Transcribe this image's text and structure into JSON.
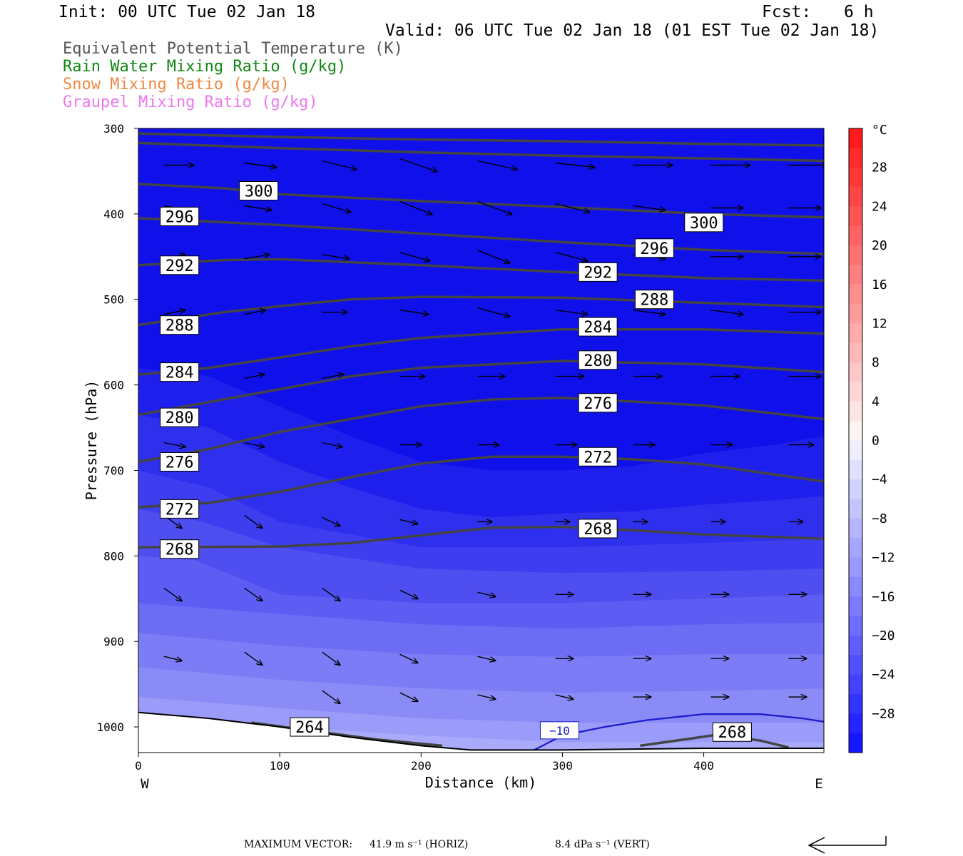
{
  "header": {
    "init": "Init: 00 UTC Tue 02 Jan 18",
    "fcst_label": "Fcst:",
    "fcst_value": "6 h",
    "valid": "Valid: 06 UTC Tue 02 Jan 18 (01 EST Tue 02 Jan 18)"
  },
  "legend": [
    {
      "text": "Equivalent Potential Temperature (K)",
      "color": "#555555"
    },
    {
      "text": "Rain Water Mixing Ratio (g/kg)",
      "color": "#118811"
    },
    {
      "text": "Snow Mixing Ratio (g/kg)",
      "color": "#ee8844"
    },
    {
      "text": "Graupel Mixing Ratio (g/kg)",
      "color": "#ee77ee"
    }
  ],
  "chart_data": {
    "type": "heatmap",
    "title": "",
    "xlabel": "Distance (km)",
    "ylabel": "Pressure (hPa)",
    "x_range": [
      0,
      485
    ],
    "y_range": [
      300,
      1030
    ],
    "x_ticks": [
      0,
      100,
      200,
      300,
      400
    ],
    "y_ticks": [
      300,
      400,
      500,
      600,
      700,
      800,
      900,
      1000
    ],
    "x_end_labels": {
      "left": "W",
      "right": "E"
    },
    "colorbar": {
      "unit": "°C",
      "range": [
        -32,
        32
      ],
      "labels": [
        "28",
        "24",
        "20",
        "16",
        "12",
        "8",
        "4",
        "0",
        "−4",
        "−8",
        "−12",
        "−16",
        "−20",
        "−24",
        "−28"
      ]
    },
    "temperature_bands": [
      {
        "value": -30,
        "top": [
          [
            0,
            300
          ],
          [
            485,
            300
          ]
        ]
      },
      {
        "value": -28,
        "top": [
          [
            0,
            580
          ],
          [
            50,
            590
          ],
          [
            100,
            625
          ],
          [
            150,
            660
          ],
          [
            200,
            690
          ],
          [
            250,
            700
          ],
          [
            300,
            700
          ],
          [
            350,
            695
          ],
          [
            400,
            680
          ],
          [
            450,
            670
          ],
          [
            485,
            660
          ]
        ]
      },
      {
        "value": -26,
        "top": [
          [
            0,
            635
          ],
          [
            50,
            650
          ],
          [
            100,
            690
          ],
          [
            150,
            720
          ],
          [
            200,
            745
          ],
          [
            250,
            755
          ],
          [
            300,
            750
          ],
          [
            350,
            748
          ],
          [
            400,
            740
          ],
          [
            450,
            735
          ],
          [
            485,
            730
          ]
        ]
      },
      {
        "value": -24,
        "top": [
          [
            0,
            700
          ],
          [
            50,
            720
          ],
          [
            100,
            760
          ],
          [
            150,
            775
          ],
          [
            200,
            790
          ],
          [
            300,
            790
          ],
          [
            400,
            785
          ],
          [
            485,
            780
          ]
        ]
      },
      {
        "value": -22,
        "top": [
          [
            0,
            745
          ],
          [
            45,
            760
          ],
          [
            100,
            790
          ],
          [
            200,
            815
          ],
          [
            300,
            820
          ],
          [
            400,
            818
          ],
          [
            485,
            815
          ]
        ]
      },
      {
        "value": -20,
        "top": [
          [
            0,
            800
          ],
          [
            40,
            805
          ],
          [
            100,
            845
          ],
          [
            200,
            855
          ],
          [
            300,
            855
          ],
          [
            400,
            850
          ],
          [
            485,
            845
          ]
        ]
      },
      {
        "value": -18,
        "top": [
          [
            0,
            855
          ],
          [
            100,
            868
          ],
          [
            200,
            880
          ],
          [
            300,
            885
          ],
          [
            400,
            880
          ],
          [
            485,
            878
          ]
        ]
      },
      {
        "value": -16,
        "top": [
          [
            0,
            890
          ],
          [
            100,
            905
          ],
          [
            200,
            915
          ],
          [
            300,
            918
          ],
          [
            400,
            915
          ],
          [
            485,
            915
          ]
        ]
      },
      {
        "value": -14,
        "top": [
          [
            0,
            930
          ],
          [
            100,
            945
          ],
          [
            200,
            955
          ],
          [
            300,
            960
          ],
          [
            400,
            958
          ],
          [
            485,
            955
          ]
        ]
      },
      {
        "value": -12,
        "top": [
          [
            0,
            965
          ],
          [
            100,
            978
          ],
          [
            200,
            990
          ],
          [
            300,
            995
          ],
          [
            400,
            995
          ],
          [
            485,
            995
          ]
        ]
      },
      {
        "value": -10,
        "top": [
          [
            0,
            985
          ],
          [
            100,
            1000
          ],
          [
            200,
            1010
          ],
          [
            300,
            1018
          ],
          [
            400,
            1018
          ],
          [
            485,
            1018
          ]
        ]
      }
    ],
    "theta_e_contours": [
      {
        "value": 304,
        "points": [
          [
            0,
            306
          ],
          [
            100,
            310
          ],
          [
            200,
            313
          ],
          [
            300,
            315
          ],
          [
            400,
            318
          ],
          [
            485,
            320
          ]
        ]
      },
      {
        "value": 300,
        "points": [
          [
            0,
            317
          ],
          [
            100,
            323
          ],
          [
            200,
            328
          ],
          [
            300,
            332
          ],
          [
            400,
            335
          ],
          [
            485,
            338
          ]
        ]
      },
      {
        "value": 300,
        "points": [
          [
            0,
            365
          ],
          [
            60,
            370
          ],
          [
            100,
            377
          ],
          [
            200,
            385
          ],
          [
            300,
            392
          ],
          [
            400,
            400
          ],
          [
            485,
            404
          ]
        ]
      },
      {
        "value": 296,
        "points": [
          [
            0,
            405
          ],
          [
            100,
            413
          ],
          [
            200,
            423
          ],
          [
            300,
            433
          ],
          [
            400,
            442
          ],
          [
            485,
            447
          ]
        ]
      },
      {
        "value": 292,
        "points": [
          [
            0,
            460
          ],
          [
            60,
            454
          ],
          [
            100,
            453
          ],
          [
            200,
            460
          ],
          [
            300,
            468
          ],
          [
            400,
            475
          ],
          [
            485,
            478
          ]
        ]
      },
      {
        "value": 288,
        "points": [
          [
            0,
            530
          ],
          [
            60,
            515
          ],
          [
            100,
            508
          ],
          [
            150,
            500
          ],
          [
            200,
            497
          ],
          [
            300,
            498
          ],
          [
            400,
            504
          ],
          [
            485,
            509
          ]
        ]
      },
      {
        "value": 284,
        "points": [
          [
            0,
            588
          ],
          [
            50,
            580
          ],
          [
            100,
            568
          ],
          [
            150,
            555
          ],
          [
            200,
            545
          ],
          [
            300,
            535
          ],
          [
            400,
            535
          ],
          [
            485,
            540
          ]
        ]
      },
      {
        "value": 280,
        "points": [
          [
            0,
            635
          ],
          [
            50,
            620
          ],
          [
            100,
            605
          ],
          [
            150,
            590
          ],
          [
            200,
            580
          ],
          [
            300,
            572
          ],
          [
            400,
            576
          ],
          [
            485,
            585
          ]
        ]
      },
      {
        "value": 276,
        "points": [
          [
            0,
            690
          ],
          [
            50,
            675
          ],
          [
            100,
            655
          ],
          [
            150,
            640
          ],
          [
            200,
            625
          ],
          [
            250,
            617
          ],
          [
            300,
            615
          ],
          [
            400,
            624
          ],
          [
            485,
            640
          ]
        ]
      },
      {
        "value": 272,
        "points": [
          [
            0,
            743
          ],
          [
            50,
            738
          ],
          [
            100,
            725
          ],
          [
            150,
            708
          ],
          [
            200,
            692
          ],
          [
            250,
            684
          ],
          [
            300,
            684
          ],
          [
            350,
            687
          ],
          [
            400,
            693
          ],
          [
            485,
            713
          ]
        ]
      },
      {
        "value": 268,
        "points": [
          [
            0,
            790
          ],
          [
            100,
            789
          ],
          [
            150,
            785
          ],
          [
            200,
            776
          ],
          [
            250,
            767
          ],
          [
            300,
            766
          ],
          [
            350,
            770
          ],
          [
            400,
            775
          ],
          [
            485,
            780
          ]
        ]
      },
      {
        "value": 264,
        "points": [
          [
            80,
            995
          ],
          [
            120,
            1004
          ],
          [
            170,
            1015
          ],
          [
            215,
            1022
          ]
        ]
      },
      {
        "value": 268,
        "points": [
          [
            355,
            1022
          ],
          [
            385,
            1015
          ],
          [
            410,
            1009
          ],
          [
            440,
            1016
          ],
          [
            460,
            1024
          ]
        ]
      }
    ],
    "theta_e_labels": [
      {
        "text": "300",
        "x": 75,
        "y": 373
      },
      {
        "text": "296",
        "x": 19,
        "y": 403
      },
      {
        "text": "292",
        "x": 19,
        "y": 460
      },
      {
        "text": "288",
        "x": 19,
        "y": 530
      },
      {
        "text": "284",
        "x": 19,
        "y": 585
      },
      {
        "text": "280",
        "x": 19,
        "y": 638
      },
      {
        "text": "276",
        "x": 19,
        "y": 690
      },
      {
        "text": "272",
        "x": 19,
        "y": 745
      },
      {
        "text": "268",
        "x": 19,
        "y": 792
      },
      {
        "text": "300",
        "x": 390,
        "y": 410
      },
      {
        "text": "296",
        "x": 355,
        "y": 440
      },
      {
        "text": "292",
        "x": 315,
        "y": 468
      },
      {
        "text": "288",
        "x": 355,
        "y": 500
      },
      {
        "text": "284",
        "x": 315,
        "y": 532
      },
      {
        "text": "280",
        "x": 315,
        "y": 571
      },
      {
        "text": "276",
        "x": 315,
        "y": 621
      },
      {
        "text": "272",
        "x": 315,
        "y": 684
      },
      {
        "text": "268",
        "x": 315,
        "y": 768
      },
      {
        "text": "264",
        "x": 111,
        "y": 1000
      },
      {
        "text": "268",
        "x": 410,
        "y": 1006
      }
    ],
    "isotherm_minus10": {
      "value": "−10",
      "points": [
        [
          280,
          1027
        ],
        [
          300,
          1010
        ],
        [
          330,
          1000
        ],
        [
          360,
          992
        ],
        [
          400,
          985
        ],
        [
          440,
          985
        ],
        [
          470,
          990
        ],
        [
          485,
          994
        ]
      ],
      "label_x": 298,
      "label_y": 1004
    },
    "terrain": [
      [
        0,
        983
      ],
      [
        50,
        990
      ],
      [
        100,
        1000
      ],
      [
        150,
        1012
      ],
      [
        200,
        1022
      ],
      [
        235,
        1027
      ],
      [
        300,
        1027
      ],
      [
        400,
        1025
      ],
      [
        485,
        1025
      ]
    ],
    "wind_rows": [
      {
        "p": 343,
        "dxs": [
          42,
          45,
          48,
          52,
          55,
          55,
          55,
          55,
          55
        ],
        "dys": [
          0,
          1,
          2,
          3,
          2,
          1,
          0,
          0,
          0
        ]
      },
      {
        "p": 393,
        "dxs": [
          35,
          38,
          40,
          45,
          48,
          48,
          45,
          45,
          45
        ],
        "dys": [
          1,
          1,
          2,
          3,
          3,
          2,
          1,
          0,
          0
        ]
      },
      {
        "p": 450,
        "dxs": [
          30,
          35,
          38,
          42,
          45,
          45,
          45,
          45,
          45
        ],
        "dys": [
          -1,
          -1,
          1,
          2,
          3,
          2,
          1,
          0,
          0
        ]
      },
      {
        "p": 515,
        "dxs": [
          30,
          30,
          35,
          40,
          45,
          45,
          45,
          45,
          45
        ],
        "dys": [
          -1,
          -1,
          0,
          1,
          2,
          1,
          1,
          1,
          0
        ]
      },
      {
        "p": 590,
        "dxs": [
          30,
          28,
          30,
          35,
          38,
          40,
          40,
          40,
          45
        ],
        "dys": [
          -1,
          -1,
          -1,
          0,
          0,
          0,
          0,
          0,
          0
        ]
      },
      {
        "p": 670,
        "dxs": [
          30,
          28,
          28,
          30,
          30,
          30,
          30,
          30,
          35
        ],
        "dys": [
          1,
          1,
          1,
          0,
          0,
          0,
          0,
          0,
          0
        ]
      },
      {
        "p": 760,
        "dxs": [
          25,
          25,
          25,
          25,
          20,
          20,
          20,
          20,
          20
        ],
        "dys": [
          3,
          3,
          2,
          1,
          0,
          0,
          0,
          0,
          0
        ]
      },
      {
        "p": 845,
        "dxs": [
          25,
          25,
          25,
          25,
          25,
          25,
          25,
          25,
          25
        ],
        "dys": [
          3,
          3,
          3,
          2,
          1,
          0,
          0,
          0,
          0
        ]
      },
      {
        "p": 920,
        "dxs": [
          25,
          25,
          25,
          25,
          25,
          25,
          25,
          25,
          25
        ],
        "dys": [
          1,
          3,
          3,
          2,
          1,
          0,
          0,
          0,
          0
        ]
      },
      {
        "p": 965,
        "dxs": [
          0,
          0,
          25,
          25,
          25,
          25,
          25,
          25,
          25
        ],
        "dys": [
          0,
          0,
          3,
          2,
          1,
          1,
          0,
          0,
          0
        ]
      }
    ],
    "wind_x": [
      18,
      75,
      130,
      185,
      240,
      295,
      350,
      405,
      460
    ],
    "legend_placement": "top-left"
  },
  "footer": {
    "max_vector_label": "MAXIMUM VECTOR:",
    "horiz": "41.9 m s⁻¹ (HORIZ)",
    "vert": "8.4 dPa s⁻¹ (VERT)"
  }
}
